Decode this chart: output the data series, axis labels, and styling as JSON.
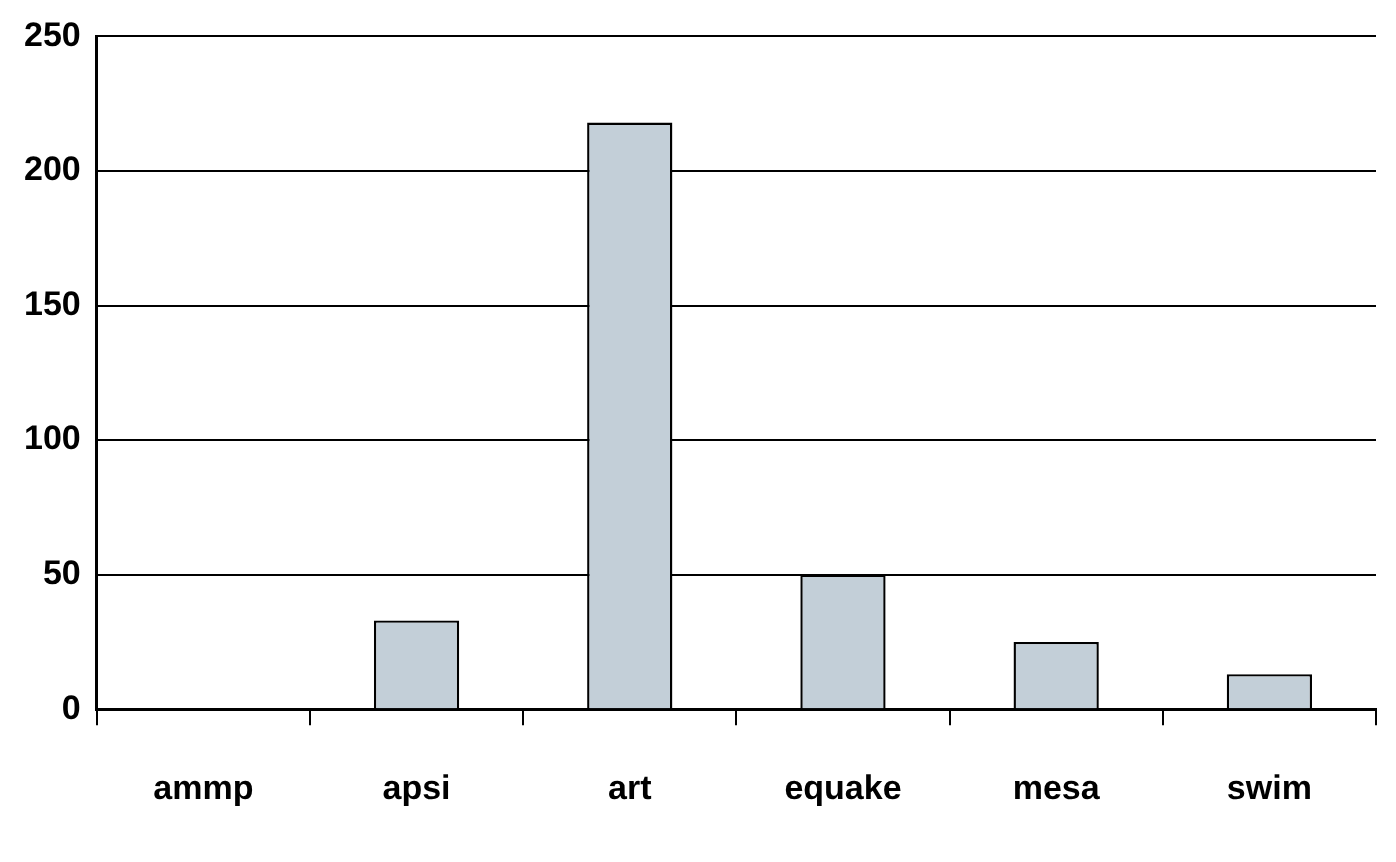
{
  "chart_data": {
    "type": "bar",
    "categories": [
      "ammp",
      "apsi",
      "art",
      "equake",
      "mesa",
      "swim"
    ],
    "values": [
      0,
      33,
      218,
      50,
      25,
      13
    ],
    "color": "#c3cfd8",
    "ylim": [
      0,
      250
    ],
    "yticks": [
      0,
      50,
      100,
      150,
      200,
      250
    ],
    "grid": "y",
    "legend": false
  }
}
